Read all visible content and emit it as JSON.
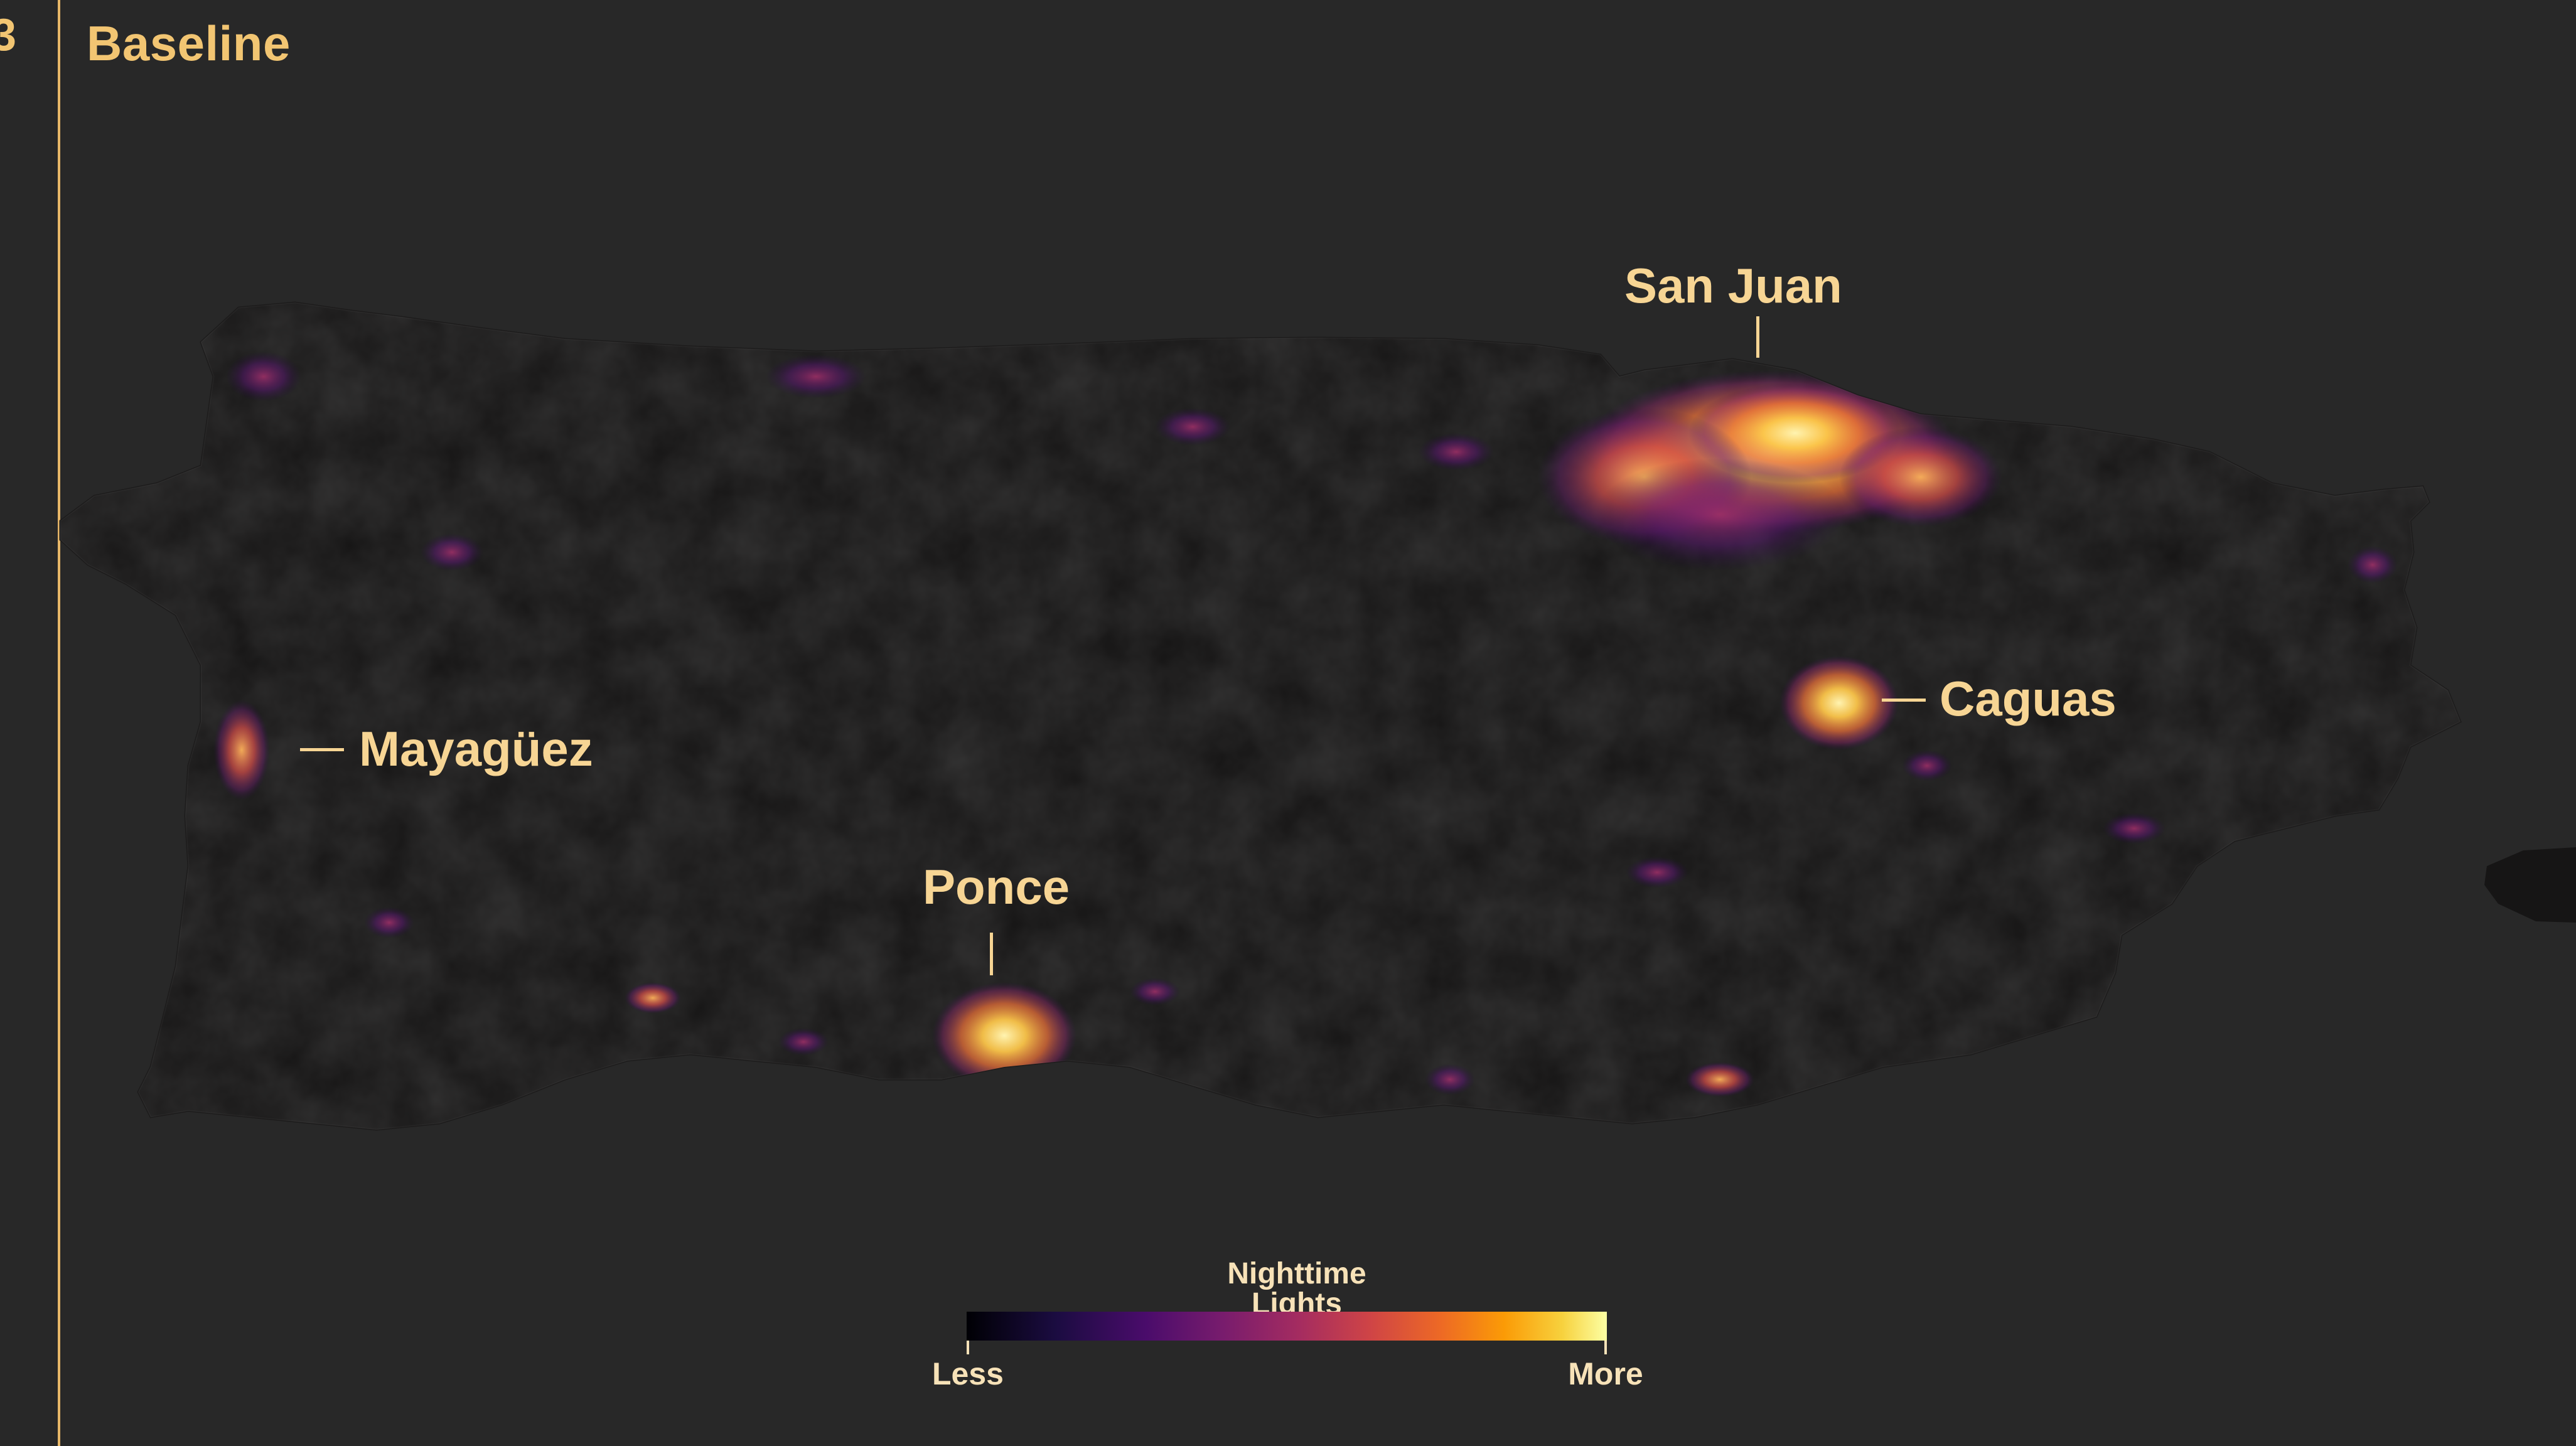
{
  "panel": {
    "edge_fragment": "3",
    "title": "Baseline"
  },
  "cities": [
    {
      "name": "San Juan",
      "leader": "vertical"
    },
    {
      "name": "Mayagüez",
      "leader": "horizontal"
    },
    {
      "name": "Caguas",
      "leader": "horizontal"
    },
    {
      "name": "Ponce",
      "leader": "vertical"
    }
  ],
  "legend": {
    "title": "Nighttime Lights",
    "low_label": "Less",
    "high_label": "More",
    "colormap": [
      "#000004",
      "#1b0c41",
      "#4a0c6b",
      "#781c6d",
      "#a52c60",
      "#cf4446",
      "#ed6925",
      "#fb9b06",
      "#f7d13d",
      "#fcffa4"
    ]
  },
  "colors": {
    "background": "#282828",
    "land": "#151414",
    "accent": "#f2c572",
    "label": "#f7d594"
  }
}
